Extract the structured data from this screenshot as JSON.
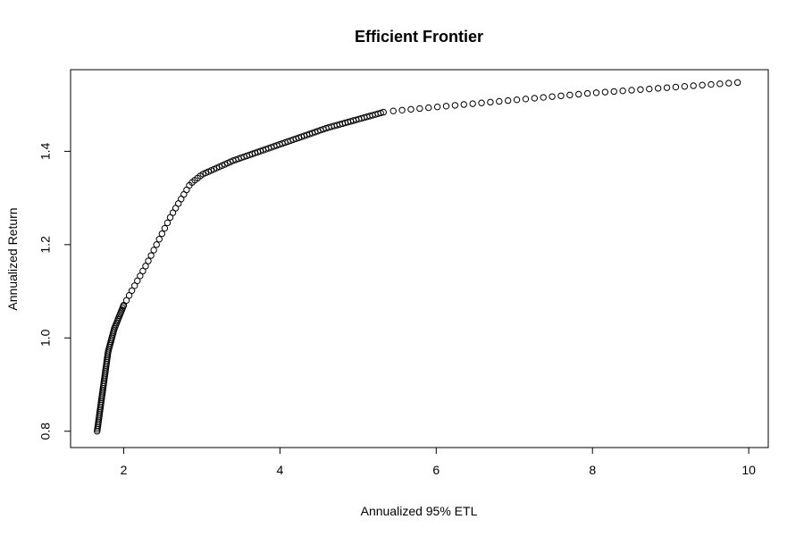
{
  "chart_data": {
    "type": "scatter",
    "title": "Efficient Frontier",
    "xlabel": "Annualized 95% ETL",
    "ylabel": "Annualized Return",
    "xlim": [
      1.32,
      10.25
    ],
    "ylim": [
      0.765,
      1.575
    ],
    "x_ticks": [
      2,
      4,
      6,
      8,
      10
    ],
    "y_ticks": [
      0.8,
      1.0,
      1.2,
      1.4
    ],
    "x_tick_labels": [
      "2",
      "4",
      "6",
      "8",
      "10"
    ],
    "y_tick_labels": [
      "0.8",
      "1.0",
      "1.2",
      "1.4"
    ],
    "grid": false,
    "marker": "open-circle",
    "marker_color": "#000000",
    "frontier_anchors": [
      {
        "x": 1.66,
        "y": 0.8
      },
      {
        "x": 1.8,
        "y": 0.97
      },
      {
        "x": 1.88,
        "y": 1.02
      },
      {
        "x": 2.0,
        "y": 1.07
      },
      {
        "x": 2.3,
        "y": 1.16
      },
      {
        "x": 2.6,
        "y": 1.26
      },
      {
        "x": 2.85,
        "y": 1.33
      },
      {
        "x": 3.0,
        "y": 1.35
      },
      {
        "x": 3.4,
        "y": 1.38
      },
      {
        "x": 4.0,
        "y": 1.415
      },
      {
        "x": 4.6,
        "y": 1.45
      },
      {
        "x": 5.35,
        "y": 1.485
      },
      {
        "x": 6.0,
        "y": 1.495
      },
      {
        "x": 7.0,
        "y": 1.51
      },
      {
        "x": 8.0,
        "y": 1.525
      },
      {
        "x": 9.0,
        "y": 1.537
      },
      {
        "x": 9.9,
        "y": 1.548
      }
    ]
  }
}
